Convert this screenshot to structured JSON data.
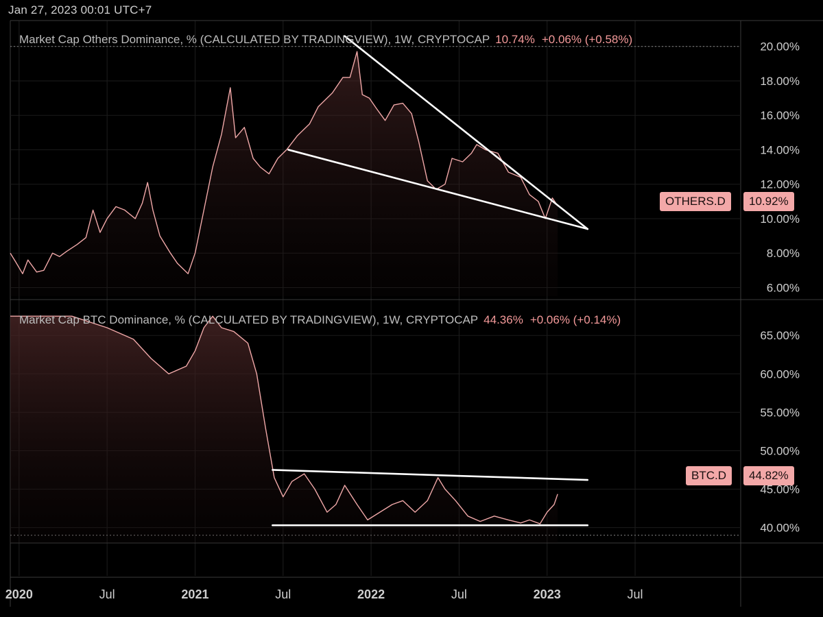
{
  "header": {
    "datetime": "Jan 27, 2023 00:01 UTC+7"
  },
  "chart_data": [
    {
      "type": "area",
      "title": "Market Cap Others Dominance, % (CALCULATED BY TRADINGVIEW), 1W, CRYPTOCAP",
      "last_value": "10.74%",
      "change": "+0.06% (+0.58%)",
      "tag": {
        "label": "OTHERS.D",
        "value": "10.92%"
      },
      "y_ticks": [
        "6.00%",
        "8.00%",
        "10.00%",
        "12.00%",
        "14.00%",
        "16.00%",
        "18.00%",
        "20.00%"
      ],
      "ylim": [
        5.5,
        21.5
      ],
      "series": [
        {
          "values": [
            [
              2019.95,
              8.0
            ],
            [
              2019.98,
              7.5
            ],
            [
              2020.02,
              6.8
            ],
            [
              2020.05,
              7.6
            ],
            [
              2020.1,
              6.9
            ],
            [
              2020.14,
              7.0
            ],
            [
              2020.19,
              8.0
            ],
            [
              2020.23,
              7.8
            ],
            [
              2020.27,
              8.1
            ],
            [
              2020.33,
              8.5
            ],
            [
              2020.38,
              8.9
            ],
            [
              2020.42,
              10.5
            ],
            [
              2020.46,
              9.2
            ],
            [
              2020.5,
              10.0
            ],
            [
              2020.55,
              10.7
            ],
            [
              2020.6,
              10.5
            ],
            [
              2020.66,
              10.0
            ],
            [
              2020.7,
              10.9
            ],
            [
              2020.73,
              12.1
            ],
            [
              2020.76,
              10.5
            ],
            [
              2020.8,
              9.0
            ],
            [
              2020.86,
              8.0
            ],
            [
              2020.9,
              7.4
            ],
            [
              2020.96,
              6.8
            ],
            [
              2021.0,
              8.0
            ],
            [
              2021.05,
              10.5
            ],
            [
              2021.1,
              13.0
            ],
            [
              2021.15,
              14.9
            ],
            [
              2021.2,
              17.6
            ],
            [
              2021.23,
              14.7
            ],
            [
              2021.28,
              15.3
            ],
            [
              2021.33,
              13.5
            ],
            [
              2021.37,
              13.0
            ],
            [
              2021.42,
              12.6
            ],
            [
              2021.47,
              13.5
            ],
            [
              2021.52,
              14.0
            ],
            [
              2021.58,
              14.8
            ],
            [
              2021.65,
              15.5
            ],
            [
              2021.7,
              16.5
            ],
            [
              2021.78,
              17.3
            ],
            [
              2021.84,
              18.2
            ],
            [
              2021.88,
              18.2
            ],
            [
              2021.92,
              19.7
            ],
            [
              2021.95,
              17.2
            ],
            [
              2021.99,
              17.0
            ],
            [
              2022.03,
              16.4
            ],
            [
              2022.08,
              15.7
            ],
            [
              2022.13,
              16.6
            ],
            [
              2022.18,
              16.7
            ],
            [
              2022.23,
              16.1
            ],
            [
              2022.27,
              14.5
            ],
            [
              2022.32,
              12.2
            ],
            [
              2022.37,
              11.7
            ],
            [
              2022.42,
              12.0
            ],
            [
              2022.46,
              13.5
            ],
            [
              2022.52,
              13.3
            ],
            [
              2022.57,
              13.8
            ],
            [
              2022.6,
              14.3
            ],
            [
              2022.65,
              14.0
            ],
            [
              2022.72,
              13.8
            ],
            [
              2022.78,
              12.7
            ],
            [
              2022.85,
              12.4
            ],
            [
              2022.9,
              11.4
            ],
            [
              2022.95,
              11.0
            ],
            [
              2022.99,
              10.0
            ],
            [
              2023.03,
              11.2
            ],
            [
              2023.06,
              10.74
            ]
          ]
        }
      ],
      "annotations": "falling wedge trendlines"
    },
    {
      "type": "area",
      "title": "Market Cap BTC Dominance, % (CALCULATED BY TRADINGVIEW), 1W, CRYPTOCAP",
      "last_value": "44.36%",
      "change": "+0.06% (+0.14%)",
      "tag": {
        "label": "BTC.D",
        "value": "44.82%"
      },
      "y_ticks": [
        "40.00%",
        "45.00%",
        "50.00%",
        "55.00%",
        "60.00%",
        "65.00%"
      ],
      "ylim": [
        38.0,
        68.5
      ],
      "series": [
        {
          "values": [
            [
              2019.95,
              67.5
            ],
            [
              2020.1,
              67.5
            ],
            [
              2020.3,
              67.5
            ],
            [
              2020.5,
              66.0
            ],
            [
              2020.65,
              64.5
            ],
            [
              2020.75,
              62.0
            ],
            [
              2020.85,
              60.0
            ],
            [
              2020.95,
              61.0
            ],
            [
              2021.0,
              63.0
            ],
            [
              2021.05,
              66.0
            ],
            [
              2021.1,
              67.5
            ],
            [
              2021.15,
              66.0
            ],
            [
              2021.22,
              65.5
            ],
            [
              2021.3,
              64.0
            ],
            [
              2021.35,
              60.0
            ],
            [
              2021.4,
              53.0
            ],
            [
              2021.45,
              46.5
            ],
            [
              2021.5,
              44.0
            ],
            [
              2021.55,
              46.0
            ],
            [
              2021.62,
              47.0
            ],
            [
              2021.68,
              45.0
            ],
            [
              2021.75,
              42.0
            ],
            [
              2021.8,
              43.0
            ],
            [
              2021.85,
              45.5
            ],
            [
              2021.92,
              43.0
            ],
            [
              2021.98,
              41.0
            ],
            [
              2022.05,
              42.0
            ],
            [
              2022.12,
              43.0
            ],
            [
              2022.18,
              43.5
            ],
            [
              2022.25,
              42.0
            ],
            [
              2022.32,
              43.5
            ],
            [
              2022.38,
              46.5
            ],
            [
              2022.42,
              45.0
            ],
            [
              2022.48,
              43.5
            ],
            [
              2022.55,
              41.5
            ],
            [
              2022.62,
              40.8
            ],
            [
              2022.7,
              41.5
            ],
            [
              2022.78,
              41.0
            ],
            [
              2022.85,
              40.6
            ],
            [
              2022.9,
              41.0
            ],
            [
              2022.96,
              40.5
            ],
            [
              2023.0,
              42.0
            ],
            [
              2023.04,
              43.0
            ],
            [
              2023.06,
              44.36
            ]
          ]
        }
      ],
      "annotations": "horizontal channel trendlines"
    }
  ],
  "x_axis": {
    "xlim": [
      2019.95,
      2024.1
    ],
    "ticks": [
      {
        "label": "2020",
        "year": true
      },
      {
        "label": "Jul",
        "year": false
      },
      {
        "label": "2021",
        "year": true
      },
      {
        "label": "Jul",
        "year": false
      },
      {
        "label": "2022",
        "year": true
      },
      {
        "label": "Jul",
        "year": false
      },
      {
        "label": "2023",
        "year": true
      },
      {
        "label": "Jul",
        "year": false
      }
    ]
  },
  "colors": {
    "line": "#f0a8a8",
    "accent": "#f49a9a",
    "tag_bg": "#f3a8a8",
    "trendline": "#ffffff"
  }
}
